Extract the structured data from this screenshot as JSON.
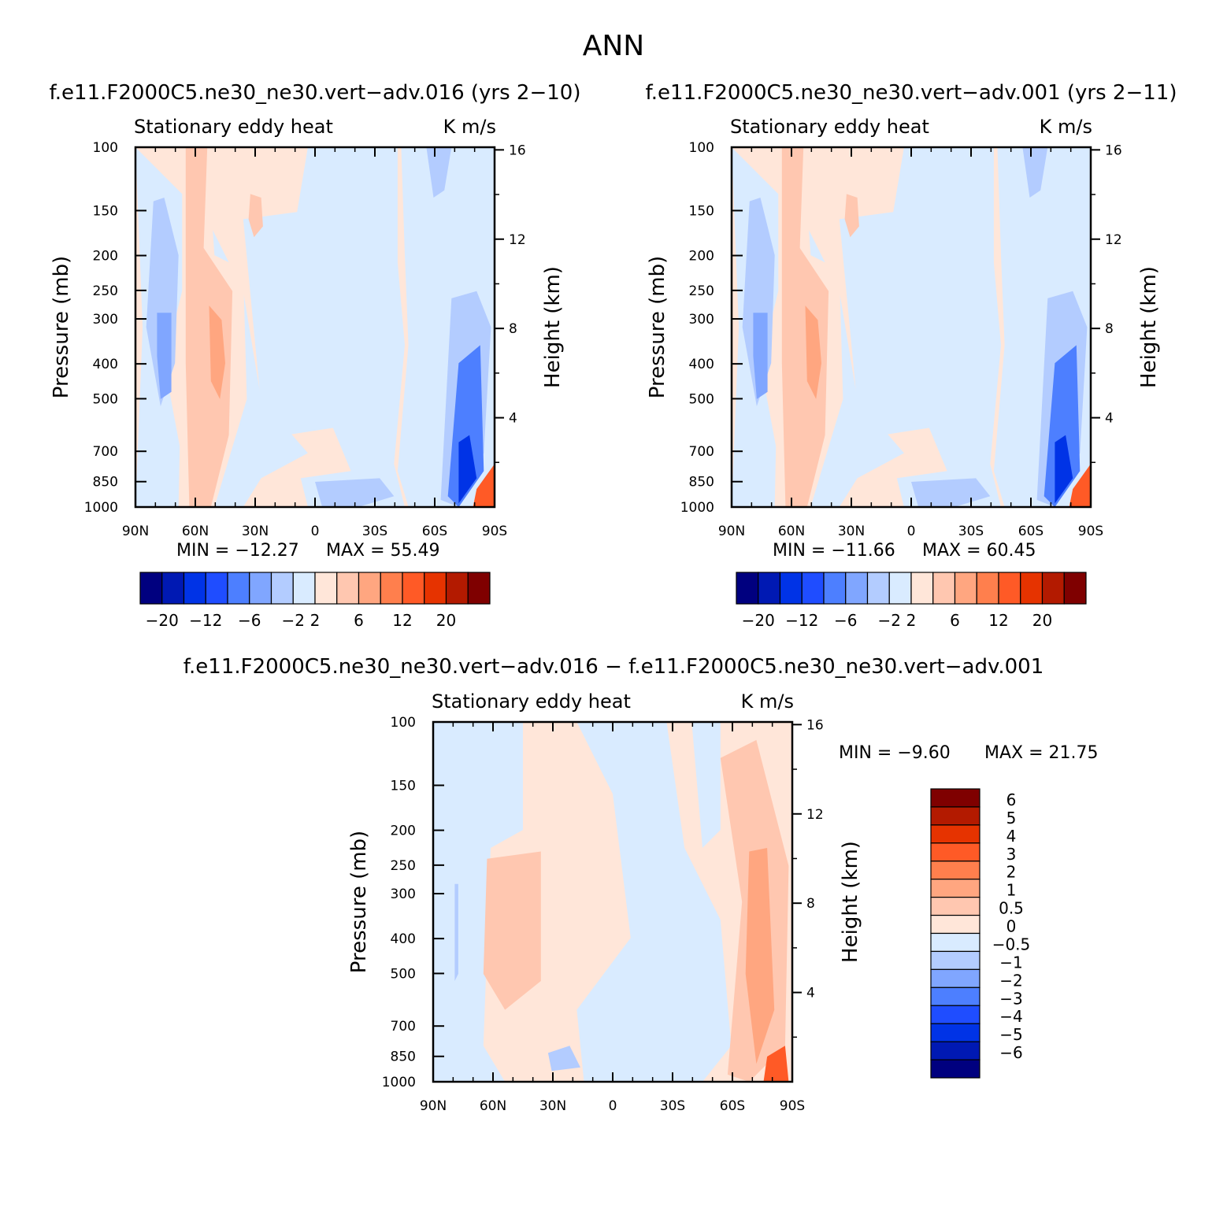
{
  "figure": {
    "title": "ANN"
  },
  "colors": {
    "blue_to_red": [
      "#00007f",
      "#0019b3",
      "#0033e6",
      "#1f4dff",
      "#4d7fff",
      "#80a6ff",
      "#b3ccff",
      "#d9ebff",
      "#ffe6d9",
      "#ffc7b0",
      "#ffa680",
      "#ff7f4d",
      "#ff5a26",
      "#e63300",
      "#b31a00",
      "#7f0000"
    ],
    "background": "#ffffff"
  },
  "chart_data": [
    {
      "id": "panel_a",
      "type": "heatmap",
      "case_title": "f.e11.F2000C5.ne30_ne30.vert-adv.016 (yrs 2-10)",
      "subtitle_left": "Stationary eddy heat",
      "subtitle_right": "K m/s",
      "ylabel": "Pressure (mb)",
      "y2label": "Height (km)",
      "x_ticks": [
        "90N",
        "60N",
        "30N",
        "0",
        "30S",
        "60S",
        "90S"
      ],
      "x_range": [
        90,
        -90
      ],
      "y_ticks": [
        100,
        150,
        200,
        250,
        300,
        400,
        500,
        700,
        850,
        1000
      ],
      "y_range": [
        100,
        1000
      ],
      "y_scale": "log",
      "y2_ticks": [
        16,
        12,
        8,
        4
      ],
      "min_label": "MIN = -12.27",
      "max_label": "MAX = 55.49",
      "colorbar_orientation": "horizontal",
      "colorbar_labels": [
        "-20",
        "-12",
        "-6",
        "-2",
        "2",
        "6",
        "12",
        "20"
      ],
      "colorbar_levels": [
        -20,
        -16,
        -12,
        -8,
        -6,
        -4,
        -2,
        0,
        2,
        4,
        6,
        8,
        12,
        16,
        20
      ]
    },
    {
      "id": "panel_b",
      "type": "heatmap",
      "case_title": "f.e11.F2000C5.ne30_ne30.vert-adv.001 (yrs 2-11)",
      "subtitle_left": "Stationary eddy heat",
      "subtitle_right": "K m/s",
      "ylabel": "Pressure (mb)",
      "y2label": "Height (km)",
      "x_ticks": [
        "90N",
        "60N",
        "30N",
        "0",
        "30S",
        "60S",
        "90S"
      ],
      "x_range": [
        90,
        -90
      ],
      "y_ticks": [
        100,
        150,
        200,
        250,
        300,
        400,
        500,
        700,
        850,
        1000
      ],
      "y_range": [
        100,
        1000
      ],
      "y_scale": "log",
      "y2_ticks": [
        16,
        12,
        8,
        4
      ],
      "min_label": "MIN = -11.66",
      "max_label": "MAX = 60.45",
      "colorbar_orientation": "horizontal",
      "colorbar_labels": [
        "-20",
        "-12",
        "-6",
        "-2",
        "2",
        "6",
        "12",
        "20"
      ],
      "colorbar_levels": [
        -20,
        -16,
        -12,
        -8,
        -6,
        -4,
        -2,
        0,
        2,
        4,
        6,
        8,
        12,
        16,
        20
      ]
    },
    {
      "id": "panel_c",
      "type": "heatmap",
      "case_title": "f.e11.F2000C5.ne30_ne30.vert-adv.016 - f.e11.F2000C5.ne30_ne30.vert-adv.001",
      "subtitle_left": "Stationary eddy heat",
      "subtitle_right": "K m/s",
      "ylabel": "Pressure (mb)",
      "y2label": "Height (km)",
      "x_ticks": [
        "90N",
        "60N",
        "30N",
        "0",
        "30S",
        "60S",
        "90S"
      ],
      "x_range": [
        90,
        -90
      ],
      "y_ticks": [
        100,
        150,
        200,
        250,
        300,
        400,
        500,
        700,
        850,
        1000
      ],
      "y_range": [
        100,
        1000
      ],
      "y_scale": "log",
      "y2_ticks": [
        16,
        12,
        8,
        4
      ],
      "min_label": "MIN = -9.60",
      "max_label": "MAX = 21.75",
      "colorbar_orientation": "vertical",
      "colorbar_labels": [
        "6",
        "5",
        "4",
        "3",
        "2",
        "1",
        "0.5",
        "0",
        "-0.5",
        "-1",
        "-2",
        "-3",
        "-4",
        "-5",
        "-6"
      ],
      "colorbar_levels": [
        -6,
        -5,
        -4,
        -3,
        -2,
        -1,
        -0.5,
        0,
        0.5,
        1,
        2,
        3,
        4,
        5,
        6
      ]
    }
  ]
}
